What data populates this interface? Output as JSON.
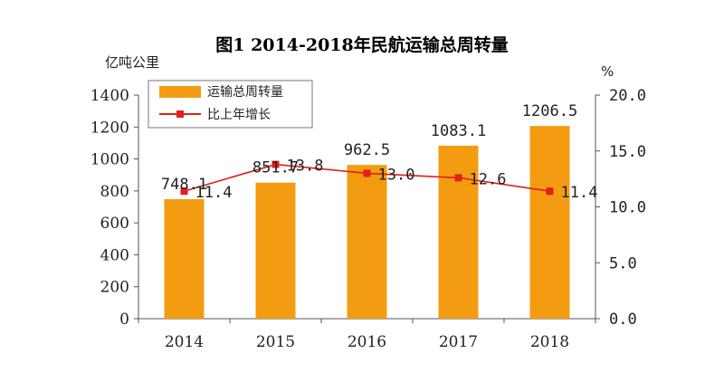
{
  "chart_data": {
    "type": "bar+line",
    "title": "图1 2014-2018年民航运输总周转量",
    "categories": [
      "2014",
      "2015",
      "2016",
      "2017",
      "2018"
    ],
    "left_axis": {
      "unit": "亿吨公里",
      "ylim": [
        0,
        1400
      ],
      "ticks": [
        "0",
        "200",
        "400",
        "600",
        "800",
        "1000",
        "1200",
        "1400"
      ]
    },
    "right_axis": {
      "unit": "%",
      "ylim": [
        0,
        20
      ],
      "ticks": [
        "0.0",
        "5.0",
        "10.0",
        "15.0",
        "20.0"
      ]
    },
    "series": [
      {
        "name": "运输总周转量",
        "kind": "bar",
        "axis": "left",
        "color": "#F39C12",
        "values": [
          748.1,
          851.7,
          962.5,
          1083.1,
          1206.5
        ],
        "labels": [
          "748.1",
          "851.7",
          "962.5",
          "1083.1",
          "1206.5"
        ]
      },
      {
        "name": "比上年增长",
        "kind": "line",
        "axis": "right",
        "color": "#E0201B",
        "values": [
          11.4,
          13.8,
          13.0,
          12.6,
          11.4
        ],
        "labels": [
          "11.4",
          "13.8",
          "13.0",
          "12.6",
          "11.4"
        ]
      }
    ],
    "legend_position": "top-left",
    "grid": false
  }
}
